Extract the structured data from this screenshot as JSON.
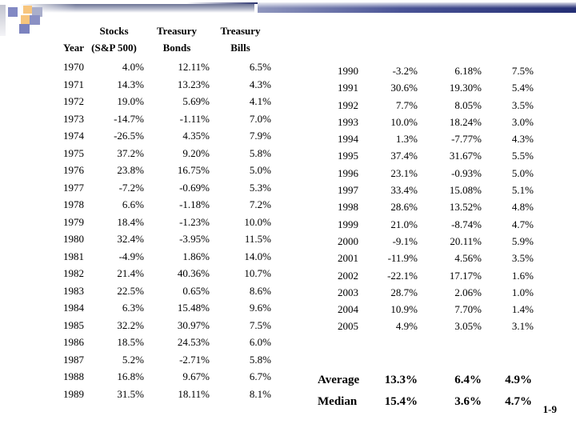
{
  "page": {
    "number": "1-9"
  },
  "decor": {
    "accent_purple": "#8289c4",
    "accent_purple_dark": "#7b82be",
    "accent_gray_blue": "#a9aecb",
    "accent_orange": "#f7c57d",
    "bar_navy": "#242e74",
    "bar_gray": "#6b7394"
  },
  "table_left": {
    "headers_line1": [
      "",
      "Stocks",
      "Treasury",
      "Treasury"
    ],
    "headers_line2": [
      "Year",
      "(S&P 500)",
      "Bonds",
      "Bills"
    ],
    "rows": [
      [
        "1970",
        "4.0%",
        "12.11%",
        "6.5%"
      ],
      [
        "1971",
        "14.3%",
        "13.23%",
        "4.3%"
      ],
      [
        "1972",
        "19.0%",
        "5.69%",
        "4.1%"
      ],
      [
        "1973",
        "-14.7%",
        "-1.11%",
        "7.0%"
      ],
      [
        "1974",
        "-26.5%",
        "4.35%",
        "7.9%"
      ],
      [
        "1975",
        "37.2%",
        "9.20%",
        "5.8%"
      ],
      [
        "1976",
        "23.8%",
        "16.75%",
        "5.0%"
      ],
      [
        "1977",
        "-7.2%",
        "-0.69%",
        "5.3%"
      ],
      [
        "1978",
        "6.6%",
        "-1.18%",
        "7.2%"
      ],
      [
        "1979",
        "18.4%",
        "-1.23%",
        "10.0%"
      ],
      [
        "1980",
        "32.4%",
        "-3.95%",
        "11.5%"
      ],
      [
        "1981",
        "-4.9%",
        "1.86%",
        "14.0%"
      ],
      [
        "1982",
        "21.4%",
        "40.36%",
        "10.7%"
      ],
      [
        "1983",
        "22.5%",
        "0.65%",
        "8.6%"
      ],
      [
        "1984",
        "6.3%",
        "15.48%",
        "9.6%"
      ],
      [
        "1985",
        "32.2%",
        "30.97%",
        "7.5%"
      ],
      [
        "1986",
        "18.5%",
        "24.53%",
        "6.0%"
      ],
      [
        "1987",
        "5.2%",
        "-2.71%",
        "5.8%"
      ],
      [
        "1988",
        "16.8%",
        "9.67%",
        "6.7%"
      ],
      [
        "1989",
        "31.5%",
        "18.11%",
        "8.1%"
      ]
    ]
  },
  "table_right": {
    "rows": [
      [
        "1990",
        "-3.2%",
        "6.18%",
        "7.5%"
      ],
      [
        "1991",
        "30.6%",
        "19.30%",
        "5.4%"
      ],
      [
        "1992",
        "7.7%",
        "8.05%",
        "3.5%"
      ],
      [
        "1993",
        "10.0%",
        "18.24%",
        "3.0%"
      ],
      [
        "1994",
        "1.3%",
        "-7.77%",
        "4.3%"
      ],
      [
        "1995",
        "37.4%",
        "31.67%",
        "5.5%"
      ],
      [
        "1996",
        "23.1%",
        "-0.93%",
        "5.0%"
      ],
      [
        "1997",
        "33.4%",
        "15.08%",
        "5.1%"
      ],
      [
        "1998",
        "28.6%",
        "13.52%",
        "4.8%"
      ],
      [
        "1999",
        "21.0%",
        "-8.74%",
        "4.7%"
      ],
      [
        "2000",
        "-9.1%",
        "20.11%",
        "5.9%"
      ],
      [
        "2001",
        "-11.9%",
        "4.56%",
        "3.5%"
      ],
      [
        "2002",
        "-22.1%",
        "17.17%",
        "1.6%"
      ],
      [
        "2003",
        "28.7%",
        "2.06%",
        "1.0%"
      ],
      [
        "2004",
        "10.9%",
        "7.70%",
        "1.4%"
      ],
      [
        "2005",
        "4.9%",
        "3.05%",
        "3.1%"
      ]
    ]
  },
  "summary": {
    "rows": [
      [
        "Average",
        "13.3%",
        "6.4%",
        "4.9%"
      ],
      [
        "Median",
        "15.4%",
        "3.6%",
        "4.7%"
      ]
    ]
  }
}
